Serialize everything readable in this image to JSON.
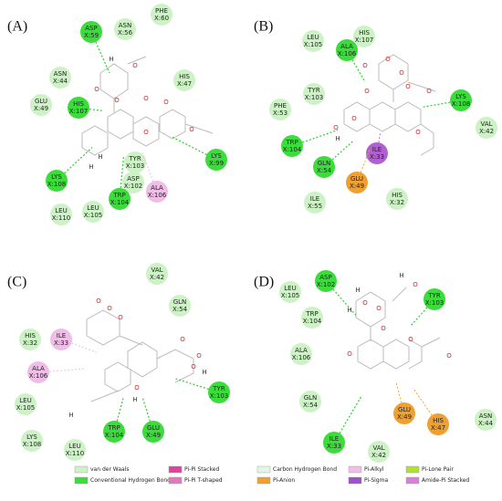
{
  "panels": [
    {
      "label": "(A)",
      "residues": [
        {
          "name": "ASP",
          "id": "X:59",
          "color": "#3ddc3d"
        },
        {
          "name": "ASN",
          "id": "X:56",
          "color": "#cdf2c6"
        },
        {
          "name": "PHE",
          "id": "X:60",
          "color": "#cdf2c6"
        },
        {
          "name": "ASN",
          "id": "X:44",
          "color": "#cdf2c6"
        },
        {
          "name": "GLU",
          "id": "X:49",
          "color": "#cdf2c6"
        },
        {
          "name": "HIS",
          "id": "X:107",
          "color": "#3ddc3d"
        },
        {
          "name": "HIS",
          "id": "X:47",
          "color": "#cdf2c6"
        },
        {
          "name": "TYR",
          "id": "X:103",
          "color": "#cdf2c6"
        },
        {
          "name": "ASP",
          "id": "X:102",
          "color": "#cdf2c6"
        },
        {
          "name": "ALA",
          "id": "X:106",
          "color": "#f0bde8"
        },
        {
          "name": "LYS",
          "id": "X:99",
          "color": "#3ddc3d"
        },
        {
          "name": "LYS",
          "id": "X:108",
          "color": "#3ddc3d"
        },
        {
          "name": "TRP",
          "id": "X:104",
          "color": "#3ddc3d"
        },
        {
          "name": "LEU",
          "id": "X:110",
          "color": "#cdf2c6"
        },
        {
          "name": "LEU",
          "id": "X:105",
          "color": "#cdf2c6"
        }
      ],
      "atoms": [
        "H",
        "O",
        "O",
        "O",
        "O",
        "H",
        "O",
        "O",
        "H",
        "O"
      ]
    },
    {
      "label": "(B)",
      "residues": [
        {
          "name": "LEU",
          "id": "X:105",
          "color": "#cdf2c6"
        },
        {
          "name": "HIS",
          "id": "X:107",
          "color": "#cdf2c6"
        },
        {
          "name": "ALA",
          "id": "X:106",
          "color": "#3ddc3d"
        },
        {
          "name": "TYR",
          "id": "X:103",
          "color": "#cdf2c6"
        },
        {
          "name": "PHE",
          "id": "X:53",
          "color": "#cdf2c6"
        },
        {
          "name": "LYS",
          "id": "X:108",
          "color": "#3ddc3d"
        },
        {
          "name": "VAL",
          "id": "X:42",
          "color": "#cdf2c6"
        },
        {
          "name": "TRP",
          "id": "X:104",
          "color": "#3ddc3d"
        },
        {
          "name": "ILE",
          "id": "X:33",
          "color": "#b060d0"
        },
        {
          "name": "GLN",
          "id": "X:54",
          "color": "#3ddc3d"
        },
        {
          "name": "GLU",
          "id": "X:49",
          "color": "#f0a030"
        },
        {
          "name": "ILE",
          "id": "X:55",
          "color": "#cdf2c6"
        },
        {
          "name": "HIS",
          "id": "X:32",
          "color": "#cdf2c6"
        }
      ],
      "atoms": [
        "O",
        "O",
        "O",
        "O",
        "O",
        "O",
        "O",
        "H",
        "O",
        "O"
      ]
    },
    {
      "label": "(C)",
      "residues": [
        {
          "name": "VAL",
          "id": "X:42",
          "color": "#cdf2c6"
        },
        {
          "name": "GLN",
          "id": "X:54",
          "color": "#cdf2c6"
        },
        {
          "name": "HIS",
          "id": "X:32",
          "color": "#cdf2c6"
        },
        {
          "name": "ILE",
          "id": "X:33",
          "color": "#f0bde8"
        },
        {
          "name": "ALA",
          "id": "X:106",
          "color": "#f0bde8"
        },
        {
          "name": "LEU",
          "id": "X:105",
          "color": "#cdf2c6"
        },
        {
          "name": "TYR",
          "id": "X:103",
          "color": "#3ddc3d"
        },
        {
          "name": "LYS",
          "id": "X:108",
          "color": "#cdf2c6"
        },
        {
          "name": "TRP",
          "id": "X:104",
          "color": "#3ddc3d"
        },
        {
          "name": "GLU",
          "id": "X:49",
          "color": "#3ddc3d"
        },
        {
          "name": "LEU",
          "id": "X:110",
          "color": "#cdf2c6"
        }
      ],
      "atoms": [
        "O",
        "O",
        "O",
        "O",
        "O",
        "O",
        "H",
        "O",
        "H",
        "H"
      ]
    },
    {
      "label": "(D)",
      "residues": [
        {
          "name": "ASP",
          "id": "X:102",
          "color": "#3ddc3d"
        },
        {
          "name": "LEU",
          "id": "X:105",
          "color": "#cdf2c6"
        },
        {
          "name": "TYR",
          "id": "X:103",
          "color": "#3ddc3d"
        },
        {
          "name": "TRP",
          "id": "X:104",
          "color": "#cdf2c6"
        },
        {
          "name": "ALA",
          "id": "X:106",
          "color": "#cdf2c6"
        },
        {
          "name": "GLN",
          "id": "X:54",
          "color": "#cdf2c6"
        },
        {
          "name": "GLU",
          "id": "X:49",
          "color": "#f0a030"
        },
        {
          "name": "HIS",
          "id": "X:47",
          "color": "#f0a030"
        },
        {
          "name": "ASN",
          "id": "X:44",
          "color": "#cdf2c6"
        },
        {
          "name": "ILE",
          "id": "X:33",
          "color": "#3ddc3d"
        },
        {
          "name": "VAL",
          "id": "X:42",
          "color": "#cdf2c6"
        }
      ],
      "atoms": [
        "H",
        "O",
        "H",
        "O",
        "O",
        "H",
        "O",
        "O",
        "O",
        "O"
      ]
    }
  ],
  "legend": [
    {
      "label": "van der Waals",
      "color": "#cdf2c6"
    },
    {
      "label": "Conventional Hydrogen Bond",
      "color": "#3ddc3d"
    },
    {
      "label": "Pi-Pi Stacked",
      "color": "#e0459c"
    },
    {
      "label": "Pi-Pi T-shaped",
      "color": "#e07ac0"
    },
    {
      "label": "Carbon Hydrogen Bond",
      "color": "#e2f6e2"
    },
    {
      "label": "Pi-Anion",
      "color": "#f0a030"
    },
    {
      "label": "Pi-Alkyl",
      "color": "#f0bde8"
    },
    {
      "label": "Pi-Sigma",
      "color": "#a050c8"
    },
    {
      "label": "Pi-Lone Pair",
      "color": "#b0e030"
    },
    {
      "label": "Amide-Pi Stacked",
      "color": "#d880d8"
    }
  ]
}
